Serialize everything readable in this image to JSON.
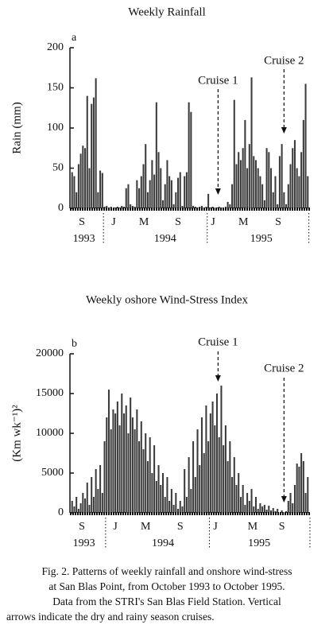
{
  "chart_data": [
    {
      "type": "bar",
      "title": "Weekly Rainfall",
      "panel_label": "a",
      "y_label": "Rain (mm)",
      "color": "#3a3a3a",
      "x": [
        0,
        1,
        2,
        3,
        4,
        5,
        6,
        7,
        8,
        9,
        10,
        11,
        12,
        13,
        14,
        15,
        16,
        17,
        18,
        19,
        20,
        21,
        22,
        23,
        24,
        25,
        26,
        27,
        28,
        29,
        30,
        31,
        32,
        33,
        34,
        35,
        36,
        37,
        38,
        39,
        40,
        41,
        42,
        43,
        44,
        45,
        46,
        47,
        48,
        49,
        50,
        51,
        52,
        53,
        54,
        55,
        56,
        57,
        58,
        59,
        60,
        61,
        62,
        63,
        64,
        65,
        66,
        67,
        68,
        69,
        70,
        71,
        72,
        73,
        74,
        75,
        76,
        77,
        78,
        79,
        80,
        81,
        82,
        83,
        84,
        85,
        86,
        87,
        88,
        89,
        90,
        91,
        92,
        93,
        94,
        95,
        96,
        97,
        98,
        99,
        100,
        101,
        102,
        103,
        104,
        105,
        106,
        107,
        108,
        109
      ],
      "values": [
        45,
        40,
        20,
        55,
        68,
        78,
        75,
        140,
        50,
        130,
        138,
        162,
        20,
        47,
        44,
        2,
        3,
        1,
        2,
        0,
        1,
        2,
        1,
        3,
        2,
        25,
        30,
        5,
        3,
        2,
        35,
        25,
        40,
        55,
        80,
        20,
        35,
        60,
        42,
        132,
        70,
        50,
        10,
        30,
        60,
        40,
        35,
        5,
        20,
        38,
        45,
        3,
        40,
        45,
        132,
        120,
        3,
        2,
        1,
        2,
        3,
        1,
        2,
        18,
        1,
        2,
        0,
        1,
        2,
        1,
        0,
        2,
        8,
        5,
        30,
        135,
        55,
        70,
        60,
        75,
        110,
        50,
        80,
        163,
        65,
        60,
        50,
        40,
        30,
        10,
        75,
        70,
        50,
        20,
        40,
        5,
        65,
        80,
        20,
        5,
        30,
        55,
        75,
        85,
        50,
        40,
        70,
        110,
        155,
        40
      ],
      "xlim": [
        -1,
        110
      ],
      "ylim": [
        0,
        200
      ],
      "yticks": [
        0,
        50,
        100,
        150,
        200
      ],
      "xticks": [
        {
          "value": 4.5,
          "label": "S"
        },
        {
          "value": 19.2,
          "label": "J"
        },
        {
          "value": 33.2,
          "label": "M"
        },
        {
          "value": 49,
          "label": "S"
        },
        {
          "value": 65.2,
          "label": "J"
        },
        {
          "value": 79.2,
          "label": "M"
        },
        {
          "value": 95.3,
          "label": "S"
        }
      ],
      "year_labels": [
        {
          "value": 5.5,
          "label": "1993"
        },
        {
          "value": 43,
          "label": "1994"
        },
        {
          "value": 87.5,
          "label": "1995"
        }
      ],
      "year_boundaries": [
        14.5,
        62.5,
        109.5
      ],
      "annotations": [
        {
          "text": "Cruise 1",
          "x": 67.5
        },
        {
          "text": "Cruise 2",
          "x": 98
        }
      ]
    },
    {
      "type": "bar",
      "title": "Weekly oshore Wind-Stress Index",
      "panel_label": "b",
      "y_label": "(Km wk⁻¹)²",
      "color": "#3a3a3a",
      "x": [
        0,
        1,
        2,
        3,
        4,
        5,
        6,
        7,
        8,
        9,
        10,
        11,
        12,
        13,
        14,
        15,
        16,
        17,
        18,
        19,
        20,
        21,
        22,
        23,
        24,
        25,
        26,
        27,
        28,
        29,
        30,
        31,
        32,
        33,
        34,
        35,
        36,
        37,
        38,
        39,
        40,
        41,
        42,
        43,
        44,
        45,
        46,
        47,
        48,
        49,
        50,
        51,
        52,
        53,
        54,
        55,
        56,
        57,
        58,
        59,
        60,
        61,
        62,
        63,
        64,
        65,
        66,
        67,
        68,
        69,
        70,
        71,
        72,
        73,
        74,
        75,
        76,
        77,
        78,
        79,
        80,
        81,
        82,
        83,
        84,
        85,
        86,
        87,
        88,
        89,
        90,
        91,
        92,
        93,
        94,
        95,
        96,
        97,
        98,
        99,
        100,
        101,
        102,
        103,
        104,
        105,
        106,
        107,
        108,
        109
      ],
      "values": [
        1500,
        800,
        2000,
        500,
        1200,
        2500,
        1800,
        3800,
        1000,
        4500,
        2000,
        5500,
        3000,
        6000,
        2500,
        9000,
        12000,
        15500,
        10500,
        13000,
        12500,
        14000,
        11000,
        15000,
        12500,
        13500,
        10000,
        14500,
        12000,
        10500,
        13000,
        9000,
        11500,
        8000,
        10000,
        6500,
        9500,
        5000,
        8500,
        4000,
        6000,
        3500,
        5000,
        2000,
        4500,
        1500,
        3000,
        1000,
        2500,
        500,
        1500,
        800,
        5500,
        2000,
        7000,
        3000,
        9000,
        4500,
        10500,
        6000,
        12000,
        7500,
        13500,
        9000,
        12500,
        14000,
        11000,
        15000,
        9500,
        16000,
        8500,
        11000,
        6500,
        9000,
        4500,
        7000,
        3500,
        5000,
        2000,
        3500,
        1000,
        2500,
        1500,
        3000,
        800,
        2000,
        500,
        1200,
        800,
        1000,
        400,
        900,
        300,
        600,
        200,
        500,
        0,
        300,
        0,
        200,
        1500,
        2500,
        1200,
        3500,
        6200,
        5800,
        7500,
        6500,
        2500,
        4500
      ],
      "xlim": [
        -1,
        110
      ],
      "ylim": [
        0,
        20000
      ],
      "yticks": [
        0,
        5000,
        10000,
        15000,
        20000
      ],
      "xticks": [
        {
          "value": 4.5,
          "label": "S"
        },
        {
          "value": 20,
          "label": "J"
        },
        {
          "value": 34,
          "label": "M"
        },
        {
          "value": 50,
          "label": "S"
        },
        {
          "value": 66.3,
          "label": "J"
        },
        {
          "value": 83.5,
          "label": "M"
        },
        {
          "value": 97,
          "label": "S"
        }
      ],
      "year_labels": [
        {
          "value": 5.5,
          "label": "1993"
        },
        {
          "value": 42,
          "label": "1994"
        },
        {
          "value": 86.5,
          "label": "1995"
        }
      ],
      "year_boundaries": [
        15.5,
        63.5,
        110
      ],
      "annotations": [
        {
          "text": "Cruise 1",
          "x": 67.5
        },
        {
          "text": "Cruise 2",
          "x": 98
        }
      ]
    }
  ],
  "caption": [
    "Fig. 2. Patterns of weekly rainfall and onshore wind-stress",
    "at San Blas Point, from October 1993 to October 1995.",
    "Data from the STRI's San Blas Field Station.  Vertical",
    "arrows indicate the dry and rainy season cruises."
  ]
}
